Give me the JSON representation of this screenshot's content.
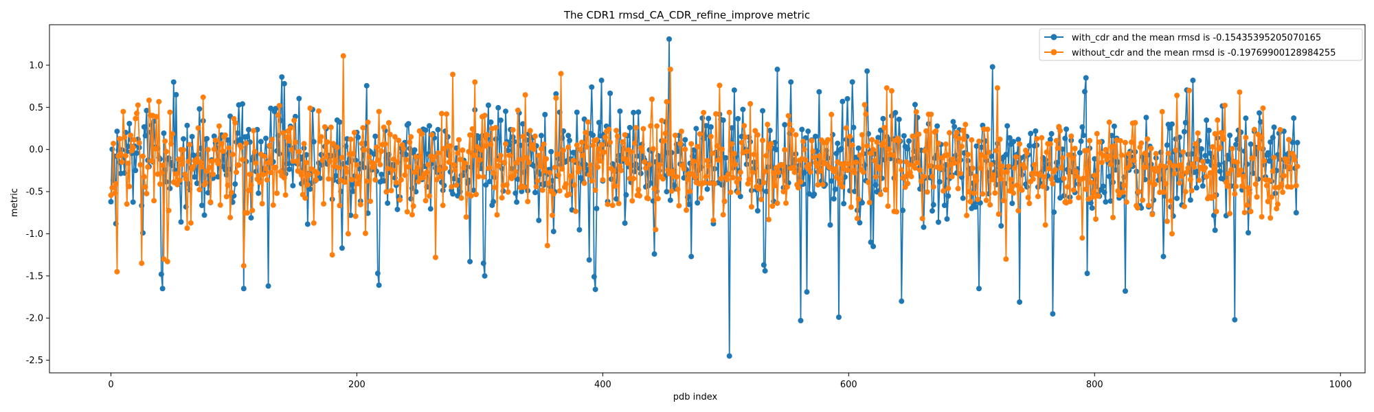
{
  "chart_data": {
    "type": "line",
    "title": "The CDR1 rmsd_CA_CDR_refine_improve metric",
    "xlabel": "pdb index",
    "ylabel": "metric",
    "xlim": [
      -50,
      1020
    ],
    "ylim": [
      -2.65,
      1.48
    ],
    "xticks": [
      0,
      200,
      400,
      600,
      800,
      1000
    ],
    "yticks": [
      -2.5,
      -2.0,
      -1.5,
      -1.0,
      -0.5,
      0.0,
      0.5,
      1.0
    ],
    "ytick_labels": [
      "-2.5",
      "-2.0",
      "-1.5",
      "-1.0",
      "-0.5",
      "0.0",
      "0.5",
      "1.0"
    ],
    "legend_position": "upper right",
    "n_points": 966,
    "markers": "circle",
    "series": [
      {
        "name": "with_cdr and the mean rmsd is -0.15435395205070165",
        "color": "#1f77b4",
        "mean": -0.15435395205070165,
        "std": 0.42,
        "seed": 12345,
        "extremes": [
          {
            "x": 0,
            "y": -0.62
          },
          {
            "x": 4,
            "y": -0.88
          },
          {
            "x": 26,
            "y": -0.99
          },
          {
            "x": 41,
            "y": -1.48
          },
          {
            "x": 42,
            "y": -1.65
          },
          {
            "x": 51,
            "y": 0.8
          },
          {
            "x": 53,
            "y": 0.65
          },
          {
            "x": 57,
            "y": -0.86
          },
          {
            "x": 108,
            "y": -1.65
          },
          {
            "x": 128,
            "y": -1.62
          },
          {
            "x": 139,
            "y": 0.86
          },
          {
            "x": 141,
            "y": 0.78
          },
          {
            "x": 188,
            "y": -1.17
          },
          {
            "x": 217,
            "y": -1.47
          },
          {
            "x": 218,
            "y": -1.61
          },
          {
            "x": 292,
            "y": -1.33
          },
          {
            "x": 303,
            "y": -1.35
          },
          {
            "x": 304,
            "y": -1.5
          },
          {
            "x": 389,
            "y": -1.31
          },
          {
            "x": 391,
            "y": 0.74
          },
          {
            "x": 393,
            "y": -1.51
          },
          {
            "x": 394,
            "y": -1.66
          },
          {
            "x": 399,
            "y": 0.82
          },
          {
            "x": 442,
            "y": -1.24
          },
          {
            "x": 454,
            "y": 1.31
          },
          {
            "x": 472,
            "y": -1.27
          },
          {
            "x": 503,
            "y": -2.45
          },
          {
            "x": 531,
            "y": -1.37
          },
          {
            "x": 532,
            "y": -1.44
          },
          {
            "x": 542,
            "y": 0.95
          },
          {
            "x": 553,
            "y": 0.8
          },
          {
            "x": 561,
            "y": -2.03
          },
          {
            "x": 566,
            "y": -1.69
          },
          {
            "x": 592,
            "y": -1.99
          },
          {
            "x": 615,
            "y": 0.93
          },
          {
            "x": 618,
            "y": -1.1
          },
          {
            "x": 620,
            "y": -1.15
          },
          {
            "x": 643,
            "y": -1.8
          },
          {
            "x": 706,
            "y": -1.65
          },
          {
            "x": 717,
            "y": 0.98
          },
          {
            "x": 739,
            "y": -1.81
          },
          {
            "x": 766,
            "y": -1.95
          },
          {
            "x": 794,
            "y": -1.47
          },
          {
            "x": 825,
            "y": -1.68
          },
          {
            "x": 856,
            "y": -1.27
          },
          {
            "x": 914,
            "y": -2.02
          },
          {
            "x": 880,
            "y": 0.82
          }
        ]
      },
      {
        "name": "without_cdr and the mean rmsd is -0.19769900128984255",
        "color": "#ff7f0e",
        "mean": -0.19769900128984255,
        "std": 0.4,
        "seed": 67890,
        "extremes": [
          {
            "x": 5,
            "y": -1.45
          },
          {
            "x": 10,
            "y": 0.45
          },
          {
            "x": 25,
            "y": -1.35
          },
          {
            "x": 43,
            "y": -1.3
          },
          {
            "x": 46,
            "y": -1.33
          },
          {
            "x": 75,
            "y": 0.62
          },
          {
            "x": 108,
            "y": -1.38
          },
          {
            "x": 137,
            "y": 0.52
          },
          {
            "x": 162,
            "y": 0.49
          },
          {
            "x": 180,
            "y": -1.25
          },
          {
            "x": 189,
            "y": 1.11
          },
          {
            "x": 193,
            "y": -1.0
          },
          {
            "x": 218,
            "y": 0.45
          },
          {
            "x": 264,
            "y": -1.28
          },
          {
            "x": 278,
            "y": 0.89
          },
          {
            "x": 355,
            "y": -1.14
          },
          {
            "x": 366,
            "y": 0.9
          },
          {
            "x": 455,
            "y": 0.95
          },
          {
            "x": 443,
            "y": -0.95
          },
          {
            "x": 495,
            "y": 0.76
          },
          {
            "x": 551,
            "y": 0.4
          },
          {
            "x": 614,
            "y": 0.42
          },
          {
            "x": 631,
            "y": 0.73
          },
          {
            "x": 721,
            "y": 0.73
          },
          {
            "x": 728,
            "y": -1.3
          },
          {
            "x": 790,
            "y": -1.05
          },
          {
            "x": 863,
            "y": -1.0
          },
          {
            "x": 877,
            "y": 0.7
          },
          {
            "x": 918,
            "y": 0.68
          },
          {
            "x": 937,
            "y": 0.49
          }
        ]
      }
    ]
  }
}
